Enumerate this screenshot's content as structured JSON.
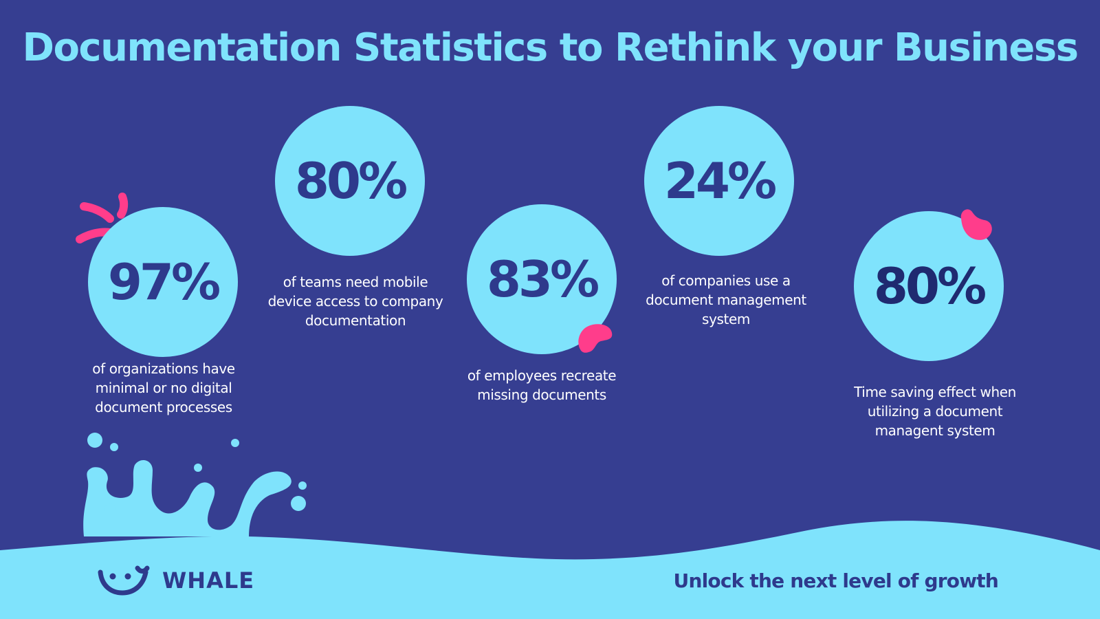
{
  "title": "Documentation Statistics to Rethink your Business",
  "stats": [
    {
      "value": "97%",
      "description": "of organizations have minimal or no digital document processes"
    },
    {
      "value": "80%",
      "description": "of teams need mobile device access to company documentation"
    },
    {
      "value": "83%",
      "description": "of employees recreate missing documents"
    },
    {
      "value": "24%",
      "description": "of companies use a document management system"
    },
    {
      "value": "80%",
      "description": "Time saving effect when utilizing a document managent system"
    }
  ],
  "footer": {
    "brand": "WHALE",
    "tagline": "Unlock the next level of growth"
  },
  "colors": {
    "background": "#363e91",
    "accent_light": "#7fe3fc",
    "accent_pink": "#ff3d8b",
    "text_dark": "#2e3a8c"
  },
  "icons": [
    "whale-smile-logo-icon",
    "splash-decoration-icon",
    "pink-burst-icon",
    "pink-blob-icon"
  ]
}
